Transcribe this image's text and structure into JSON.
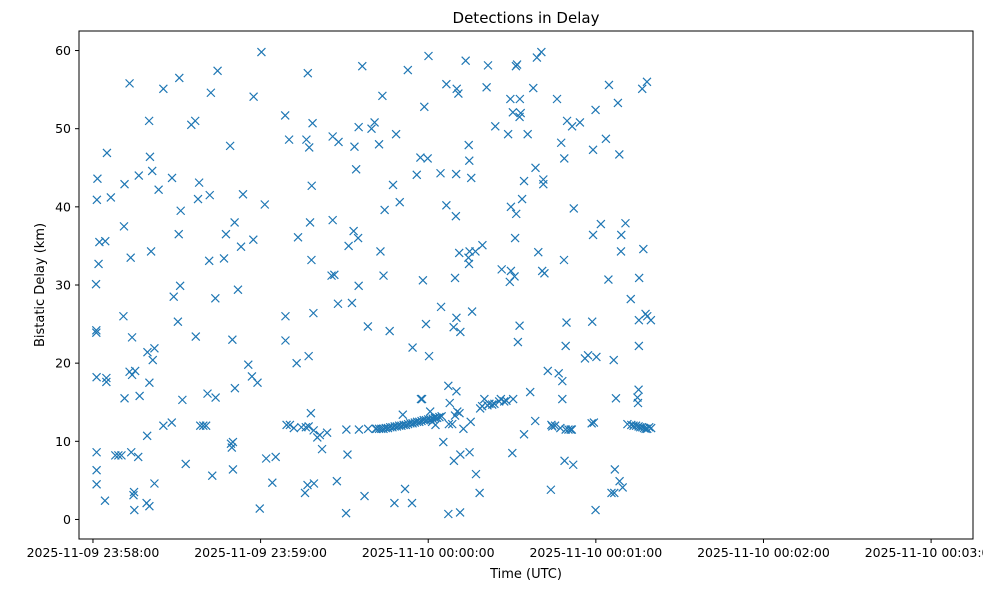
{
  "chart_data": {
    "type": "scatter",
    "title": "Detections in Delay",
    "xlabel": "Time (UTC)",
    "ylabel": "Bistatic Delay (km)",
    "marker": "x",
    "color": "#1f77b4",
    "grid": false,
    "legend": "none",
    "x_start": "2025-11-09 23:58:00",
    "xlim": [
      "2025-11-09 23:57:55",
      "2025-11-10 00:03:15"
    ],
    "ylim": [
      -2.5,
      62.5
    ],
    "xticks": [
      "2025-11-09 23:58:00",
      "2025-11-09 23:59:00",
      "2025-11-10 00:00:00",
      "2025-11-10 00:01:00",
      "2025-11-10 00:02:00",
      "2025-11-10 00:03:00"
    ],
    "yticks": [
      0,
      10,
      20,
      30,
      40,
      50,
      60
    ],
    "points": [
      [
        1.6,
        43.6
      ],
      [
        1.4,
        40.9
      ],
      [
        1.1,
        30.1
      ],
      [
        1.2,
        24.2
      ],
      [
        1.2,
        23.9
      ],
      [
        1.3,
        18.2
      ],
      [
        1.3,
        8.6
      ],
      [
        1.3,
        6.3
      ],
      [
        1.3,
        4.5
      ],
      [
        2.3,
        35.5
      ],
      [
        2.0,
        32.7
      ],
      [
        4.4,
        35.6
      ],
      [
        5.0,
        46.9
      ],
      [
        4.8,
        18.1
      ],
      [
        4.8,
        17.6
      ],
      [
        4.3,
        2.4
      ],
      [
        6.4,
        41.2
      ],
      [
        8.0,
        8.2
      ],
      [
        9.1,
        8.2
      ],
      [
        10.2,
        8.2
      ],
      [
        11.1,
        37.5
      ],
      [
        10.9,
        26.0
      ],
      [
        11.3,
        15.5
      ],
      [
        11.3,
        42.9
      ],
      [
        13.1,
        55.8
      ],
      [
        13.5,
        33.5
      ],
      [
        13.1,
        18.9
      ],
      [
        14.0,
        18.5
      ],
      [
        15.1,
        19.0
      ],
      [
        14.0,
        23.3
      ],
      [
        13.7,
        8.6
      ],
      [
        14.7,
        3.5
      ],
      [
        14.5,
        3.1
      ],
      [
        14.8,
        1.2
      ],
      [
        16.4,
        44.0
      ],
      [
        16.7,
        15.8
      ],
      [
        16.2,
        8.0
      ],
      [
        20.1,
        51.0
      ],
      [
        20.4,
        46.4
      ],
      [
        21.2,
        44.6
      ],
      [
        20.8,
        34.3
      ],
      [
        19.5,
        21.4
      ],
      [
        21.4,
        20.4
      ],
      [
        22.0,
        21.9
      ],
      [
        20.2,
        17.5
      ],
      [
        19.4,
        10.7
      ],
      [
        19.2,
        2.1
      ],
      [
        20.2,
        1.7
      ],
      [
        22.0,
        4.6
      ],
      [
        23.5,
        42.2
      ],
      [
        25.2,
        55.1
      ],
      [
        28.3,
        43.7
      ],
      [
        28.9,
        28.5
      ],
      [
        30.7,
        36.5
      ],
      [
        30.4,
        25.3
      ],
      [
        31.2,
        29.9
      ],
      [
        31.4,
        39.5
      ],
      [
        30.9,
        56.5
      ],
      [
        25.2,
        12.0
      ],
      [
        28.2,
        12.4
      ],
      [
        32.0,
        15.3
      ],
      [
        33.2,
        7.1
      ],
      [
        35.2,
        50.5
      ],
      [
        36.6,
        51.0
      ],
      [
        36.8,
        23.4
      ],
      [
        37.6,
        41.0
      ],
      [
        38.0,
        43.1
      ],
      [
        38.4,
        12.0
      ],
      [
        39.5,
        12.0
      ],
      [
        40.5,
        12.0
      ],
      [
        41.6,
        33.1
      ],
      [
        42.2,
        54.6
      ],
      [
        41.8,
        41.5
      ],
      [
        41.0,
        16.1
      ],
      [
        42.7,
        5.6
      ],
      [
        43.8,
        28.3
      ],
      [
        44.6,
        57.4
      ],
      [
        43.9,
        15.6
      ],
      [
        46.9,
        33.4
      ],
      [
        47.6,
        36.5
      ],
      [
        49.1,
        47.8
      ],
      [
        49.9,
        23.0
      ],
      [
        50.7,
        38.0
      ],
      [
        49.7,
        9.2
      ],
      [
        50.1,
        9.9
      ],
      [
        49.4,
        9.7
      ],
      [
        50.8,
        16.8
      ],
      [
        50.1,
        6.4
      ],
      [
        51.9,
        29.4
      ],
      [
        53.0,
        34.9
      ],
      [
        53.7,
        41.6
      ],
      [
        55.6,
        19.8
      ],
      [
        56.9,
        18.3
      ],
      [
        57.4,
        35.8
      ],
      [
        57.5,
        54.1
      ],
      [
        58.9,
        17.5
      ],
      [
        59.7,
        1.4
      ],
      [
        60.3,
        59.8
      ],
      [
        61.5,
        40.3
      ],
      [
        62.0,
        7.8
      ],
      [
        65.4,
        8.0
      ],
      [
        64.2,
        4.7
      ],
      [
        68.8,
        51.7
      ],
      [
        68.9,
        26.0
      ],
      [
        68.9,
        22.9
      ],
      [
        70.2,
        48.6
      ],
      [
        69.3,
        12.1
      ],
      [
        70.5,
        12.1
      ],
      [
        71.9,
        11.7
      ],
      [
        72.9,
        20.0
      ],
      [
        73.4,
        36.1
      ],
      [
        74.6,
        11.8
      ],
      [
        76.2,
        11.8
      ],
      [
        77.2,
        11.9
      ],
      [
        76.9,
        57.1
      ],
      [
        76.4,
        48.6
      ],
      [
        77.4,
        47.6
      ],
      [
        77.7,
        38.0
      ],
      [
        78.3,
        42.7
      ],
      [
        78.6,
        50.7
      ],
      [
        78.2,
        33.2
      ],
      [
        78.9,
        26.4
      ],
      [
        77.2,
        20.9
      ],
      [
        78.0,
        13.6
      ],
      [
        79.0,
        11.4
      ],
      [
        76.8,
        4.4
      ],
      [
        75.9,
        3.4
      ],
      [
        79.1,
        4.6
      ],
      [
        80.3,
        10.5
      ],
      [
        81.2,
        10.8
      ],
      [
        82.0,
        9.0
      ],
      [
        83.8,
        11.1
      ],
      [
        85.8,
        49.0
      ],
      [
        87.9,
        48.3
      ],
      [
        85.4,
        31.2
      ],
      [
        86.4,
        31.3
      ],
      [
        85.8,
        38.3
      ],
      [
        87.7,
        27.6
      ],
      [
        87.3,
        4.9
      ],
      [
        90.7,
        11.5
      ],
      [
        90.6,
        0.8
      ],
      [
        91.1,
        8.3
      ],
      [
        91.5,
        35.0
      ],
      [
        92.7,
        27.7
      ],
      [
        93.3,
        36.9
      ],
      [
        94.2,
        44.8
      ],
      [
        93.6,
        47.7
      ],
      [
        95.1,
        50.2
      ],
      [
        94.9,
        36.0
      ],
      [
        95.1,
        29.9
      ],
      [
        95.2,
        11.5
      ],
      [
        96.4,
        58.0
      ],
      [
        97.2,
        3.0
      ],
      [
        98.4,
        24.7
      ],
      [
        98.5,
        11.6
      ],
      [
        99.7,
        50.0
      ],
      [
        100.8,
        50.8
      ],
      [
        101.2,
        11.6
      ],
      [
        102.4,
        48.0
      ],
      [
        102.9,
        34.3
      ],
      [
        103.6,
        54.2
      ],
      [
        104.0,
        31.2
      ],
      [
        104.4,
        39.6
      ],
      [
        106.2,
        24.1
      ],
      [
        107.4,
        42.8
      ],
      [
        107.9,
        2.1
      ],
      [
        108.5,
        49.3
      ],
      [
        109.8,
        40.6
      ],
      [
        110.9,
        13.4
      ],
      [
        111.7,
        3.9
      ],
      [
        112.7,
        57.5
      ],
      [
        114.2,
        2.1
      ],
      [
        114.4,
        22.0
      ],
      [
        115.9,
        44.1
      ],
      [
        101.5,
        11.6
      ],
      [
        102.4,
        11.6
      ],
      [
        103.2,
        11.6
      ],
      [
        104.0,
        11.6
      ],
      [
        104.8,
        11.7
      ],
      [
        105.6,
        11.7
      ],
      [
        106.4,
        11.8
      ],
      [
        107.2,
        11.8
      ],
      [
        108.0,
        11.9
      ],
      [
        108.8,
        11.9
      ],
      [
        109.6,
        12.0
      ],
      [
        110.4,
        12.0
      ],
      [
        111.2,
        12.1
      ],
      [
        112.0,
        12.1
      ],
      [
        112.8,
        12.2
      ],
      [
        113.6,
        12.3
      ],
      [
        114.4,
        12.3
      ],
      [
        115.2,
        12.4
      ],
      [
        116.0,
        12.5
      ],
      [
        116.8,
        12.5
      ],
      [
        117.6,
        12.6
      ],
      [
        118.4,
        12.7
      ],
      [
        119.2,
        12.7
      ],
      [
        120.0,
        12.8
      ],
      [
        120.8,
        12.8
      ],
      [
        121.6,
        12.9
      ],
      [
        122.4,
        13.0
      ],
      [
        123.2,
        13.0
      ],
      [
        124.0,
        13.1
      ],
      [
        124.8,
        13.2
      ],
      [
        117.4,
        15.4
      ],
      [
        117.8,
        15.4
      ],
      [
        117.2,
        46.3
      ],
      [
        118.1,
        30.6
      ],
      [
        118.6,
        52.8
      ],
      [
        119.2,
        25.0
      ],
      [
        119.8,
        46.2
      ],
      [
        120.1,
        59.3
      ],
      [
        120.3,
        20.9
      ],
      [
        120.7,
        13.8
      ],
      [
        121.4,
        12.5
      ],
      [
        122.6,
        12.1
      ],
      [
        124.6,
        27.2
      ],
      [
        124.4,
        44.3
      ],
      [
        125.4,
        9.9
      ],
      [
        126.5,
        55.7
      ],
      [
        126.5,
        40.2
      ],
      [
        127.2,
        17.1
      ],
      [
        127.7,
        14.9
      ],
      [
        127.4,
        12.2
      ],
      [
        127.2,
        0.7
      ],
      [
        128.6,
        12.2
      ],
      [
        129.1,
        24.6
      ],
      [
        129.2,
        7.5
      ],
      [
        129.6,
        30.9
      ],
      [
        129.6,
        13.3
      ],
      [
        130.2,
        55.1
      ],
      [
        130.0,
        44.2
      ],
      [
        129.9,
        38.8
      ],
      [
        130.1,
        25.8
      ],
      [
        130.1,
        16.4
      ],
      [
        130.4,
        13.8
      ],
      [
        130.8,
        54.5
      ],
      [
        131.1,
        34.1
      ],
      [
        131.2,
        13.6
      ],
      [
        131.5,
        24.0
      ],
      [
        131.5,
        8.3
      ],
      [
        131.4,
        0.9
      ],
      [
        132.6,
        11.6
      ],
      [
        133.4,
        58.7
      ],
      [
        134.5,
        47.9
      ],
      [
        134.7,
        45.9
      ],
      [
        134.4,
        33.5
      ],
      [
        134.6,
        32.7
      ],
      [
        134.8,
        34.3
      ],
      [
        135.4,
        43.7
      ],
      [
        135.7,
        26.6
      ],
      [
        135.2,
        12.5
      ],
      [
        134.8,
        8.6
      ],
      [
        136.9,
        34.3
      ],
      [
        137.1,
        5.8
      ],
      [
        138.4,
        3.4
      ],
      [
        138.6,
        14.2
      ],
      [
        139.3,
        14.5
      ],
      [
        139.4,
        35.1
      ],
      [
        140.1,
        15.4
      ],
      [
        140.9,
        55.3
      ],
      [
        141.2,
        14.6
      ],
      [
        141.4,
        58.1
      ],
      [
        141.9,
        14.8
      ],
      [
        142.9,
        14.7
      ],
      [
        143.7,
        14.8
      ],
      [
        144.0,
        50.3
      ],
      [
        145.4,
        15.1
      ],
      [
        146.3,
        32.0
      ],
      [
        146.0,
        15.4
      ],
      [
        147.2,
        15.1
      ],
      [
        148.0,
        15.2
      ],
      [
        148.6,
        49.3
      ],
      [
        149.2,
        30.4
      ],
      [
        149.4,
        53.8
      ],
      [
        149.6,
        31.8
      ],
      [
        149.6,
        40.0
      ],
      [
        150.4,
        15.4
      ],
      [
        150.1,
        8.5
      ],
      [
        150.3,
        52.1
      ],
      [
        150.9,
        31.1
      ],
      [
        151.5,
        39.1
      ],
      [
        151.1,
        36.0
      ],
      [
        151.8,
        58.2
      ],
      [
        151.4,
        58.0
      ],
      [
        152.1,
        22.7
      ],
      [
        152.7,
        24.8
      ],
      [
        152.8,
        53.8
      ],
      [
        152.7,
        51.5
      ],
      [
        153.1,
        52.0
      ],
      [
        153.6,
        41.0
      ],
      [
        154.3,
        10.9
      ],
      [
        154.3,
        43.3
      ],
      [
        155.6,
        49.3
      ],
      [
        156.5,
        16.3
      ],
      [
        157.6,
        55.2
      ],
      [
        158.3,
        12.6
      ],
      [
        158.4,
        45.0
      ],
      [
        158.9,
        59.1
      ],
      [
        159.4,
        34.2
      ],
      [
        160.5,
        59.8
      ],
      [
        160.8,
        31.8
      ],
      [
        161.2,
        43.5
      ],
      [
        161.2,
        42.9
      ],
      [
        161.6,
        31.5
      ],
      [
        162.8,
        19.0
      ],
      [
        163.9,
        3.8
      ],
      [
        164.1,
        12.1
      ],
      [
        164.4,
        11.9
      ],
      [
        165.4,
        12.0
      ],
      [
        166.1,
        53.8
      ],
      [
        166.7,
        18.7
      ],
      [
        167.3,
        11.7
      ],
      [
        167.6,
        48.2
      ],
      [
        168.0,
        17.7
      ],
      [
        168.0,
        15.4
      ],
      [
        168.6,
        33.2
      ],
      [
        168.7,
        46.2
      ],
      [
        168.8,
        7.5
      ],
      [
        169.2,
        22.2
      ],
      [
        169.2,
        11.5
      ],
      [
        169.7,
        51.0
      ],
      [
        169.5,
        25.2
      ],
      [
        170.2,
        11.5
      ],
      [
        171.0,
        11.5
      ],
      [
        171.5,
        50.3
      ],
      [
        171.4,
        11.5
      ],
      [
        172.1,
        39.8
      ],
      [
        171.9,
        7.0
      ],
      [
        174.3,
        50.8
      ],
      [
        176.1,
        20.6
      ],
      [
        177.2,
        21.0
      ],
      [
        178.5,
        12.3
      ],
      [
        178.7,
        25.3
      ],
      [
        179.0,
        47.3
      ],
      [
        179.3,
        12.4
      ],
      [
        179.0,
        36.4
      ],
      [
        179.9,
        52.4
      ],
      [
        180.2,
        20.8
      ],
      [
        179.9,
        1.2
      ],
      [
        181.8,
        37.8
      ],
      [
        183.6,
        48.7
      ],
      [
        184.5,
        30.7
      ],
      [
        184.7,
        55.6
      ],
      [
        185.6,
        3.4
      ],
      [
        186.4,
        20.4
      ],
      [
        186.6,
        3.4
      ],
      [
        186.8,
        6.4
      ],
      [
        187.2,
        15.5
      ],
      [
        187.9,
        53.3
      ],
      [
        188.4,
        46.7
      ],
      [
        188.5,
        4.9
      ],
      [
        189.1,
        36.4
      ],
      [
        189.0,
        34.3
      ],
      [
        189.6,
        4.1
      ],
      [
        190.6,
        37.9
      ],
      [
        191.3,
        12.2
      ],
      [
        192.5,
        28.2
      ],
      [
        192.7,
        12.1
      ],
      [
        193.5,
        12.0
      ],
      [
        194.4,
        12.0
      ],
      [
        194.9,
        15.6
      ],
      [
        195.1,
        14.9
      ],
      [
        195.3,
        16.6
      ],
      [
        195.4,
        25.5
      ],
      [
        195.4,
        22.2
      ],
      [
        195.3,
        11.9
      ],
      [
        195.5,
        30.9
      ],
      [
        196.6,
        55.1
      ],
      [
        197.0,
        34.6
      ],
      [
        197.8,
        26.3
      ],
      [
        198.3,
        56.0
      ],
      [
        198.4,
        26.0
      ],
      [
        199.7,
        25.5
      ],
      [
        195.9,
        11.8
      ],
      [
        196.6,
        11.8
      ],
      [
        197.2,
        11.7
      ],
      [
        197.8,
        11.6
      ],
      [
        198.4,
        11.6
      ],
      [
        199.1,
        11.8
      ],
      [
        199.8,
        11.7
      ]
    ]
  }
}
